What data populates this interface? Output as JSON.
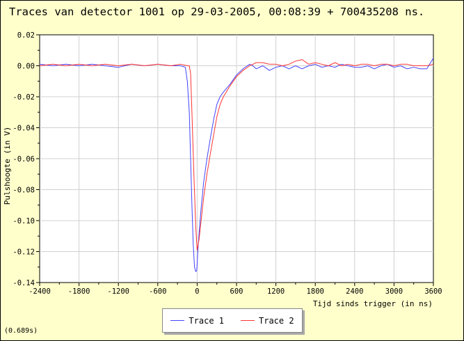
{
  "chart_data": {
    "type": "line",
    "title": "Traces van detector 1001 op 29-03-2005, 00:08:39 + 700435208 ns.",
    "xlabel": "Tijd sinds trigger (in ns)",
    "ylabel": "Pulshoogte (in V)",
    "xlim": [
      -2400,
      3600
    ],
    "ylim": [
      -0.14,
      0.02
    ],
    "xticks": [
      "-2400",
      "-1800",
      "-1200",
      "-600",
      "0",
      "600",
      "1200",
      "1800",
      "2400",
      "3000",
      "3600"
    ],
    "yticks": [
      "0.02",
      "0.00",
      "-0.02",
      "-0.04",
      "-0.06",
      "-0.08",
      "-0.10",
      "-0.12",
      "-0.14"
    ],
    "grid": true,
    "legend_position": "bottom-center",
    "series": [
      {
        "name": "Trace 1",
        "color": "#4444ff",
        "x": [
          -2400,
          -2200,
          -2000,
          -1800,
          -1600,
          -1400,
          -1200,
          -1000,
          -800,
          -600,
          -400,
          -250,
          -180,
          -150,
          -120,
          -100,
          -80,
          -60,
          -40,
          -20,
          -5,
          10,
          30,
          60,
          100,
          150,
          200,
          250,
          300,
          350,
          400,
          500,
          600,
          700,
          800,
          850,
          900,
          1000,
          1100,
          1200,
          1300,
          1400,
          1500,
          1600,
          1700,
          1800,
          1900,
          2000,
          2100,
          2200,
          2300,
          2400,
          2500,
          2600,
          2700,
          2800,
          2900,
          3000,
          3100,
          3200,
          3300,
          3400,
          3500,
          3600
        ],
        "y": [
          0.001,
          0.0,
          0.001,
          0.0,
          0.001,
          0.0,
          -0.001,
          0.001,
          0.0,
          0.001,
          0.0,
          0.0,
          -0.001,
          -0.01,
          -0.03,
          -0.06,
          -0.09,
          -0.115,
          -0.13,
          -0.133,
          -0.132,
          -0.12,
          -0.108,
          -0.092,
          -0.075,
          -0.06,
          -0.047,
          -0.035,
          -0.025,
          -0.02,
          -0.017,
          -0.012,
          -0.006,
          -0.002,
          0.001,
          0.0,
          -0.002,
          0.0,
          -0.003,
          -0.001,
          0.0,
          -0.002,
          0.0,
          -0.002,
          0.0,
          0.001,
          -0.001,
          0.0,
          -0.001,
          0.001,
          0.0,
          -0.001,
          -0.001,
          0.0,
          -0.002,
          0.0,
          0.001,
          -0.001,
          0.0,
          -0.002,
          -0.001,
          -0.002,
          -0.002,
          0.005
        ]
      },
      {
        "name": "Trace 2",
        "color": "#ff3333",
        "x": [
          -2400,
          -2200,
          -2000,
          -1800,
          -1600,
          -1400,
          -1200,
          -1000,
          -800,
          -600,
          -400,
          -250,
          -150,
          -120,
          -100,
          -80,
          -50,
          -20,
          0,
          30,
          60,
          100,
          150,
          200,
          250,
          300,
          350,
          400,
          500,
          600,
          700,
          800,
          850,
          900,
          1000,
          1100,
          1200,
          1300,
          1400,
          1500,
          1600,
          1700,
          1800,
          1900,
          2000,
          2100,
          2200,
          2300,
          2400,
          2500,
          2600,
          2700,
          2800,
          2900,
          3000,
          3100,
          3200,
          3300,
          3400,
          3500,
          3600
        ],
        "y": [
          0.0,
          0.001,
          0.0,
          0.001,
          0.0,
          0.001,
          0.0,
          0.001,
          0.0,
          0.001,
          0.0,
          0.001,
          0.0,
          0.0,
          -0.005,
          -0.03,
          -0.07,
          -0.105,
          -0.119,
          -0.112,
          -0.1,
          -0.085,
          -0.07,
          -0.057,
          -0.045,
          -0.033,
          -0.025,
          -0.02,
          -0.013,
          -0.007,
          -0.003,
          0.0,
          0.001,
          0.002,
          0.002,
          0.001,
          0.001,
          0.0,
          0.001,
          0.003,
          0.004,
          0.001,
          0.002,
          0.001,
          0.0,
          0.002,
          0.0,
          0.001,
          0.0,
          0.001,
          0.001,
          0.0,
          0.001,
          0.001,
          0.0,
          0.001,
          0.001,
          0.0,
          0.0,
          0.0,
          0.001
        ]
      }
    ]
  },
  "footer": {
    "timing": "(0.689s)"
  }
}
